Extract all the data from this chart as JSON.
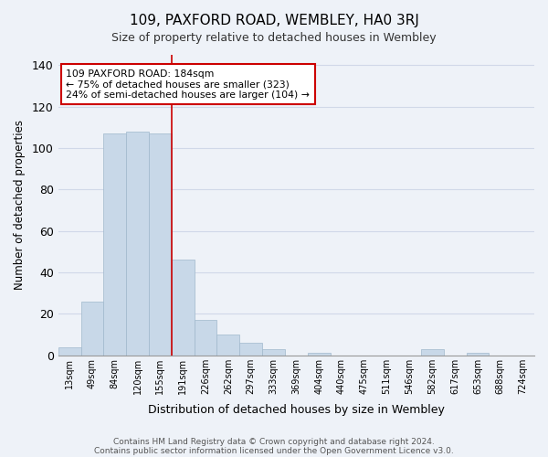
{
  "title": "109, PAXFORD ROAD, WEMBLEY, HA0 3RJ",
  "subtitle": "Size of property relative to detached houses in Wembley",
  "xlabel": "Distribution of detached houses by size in Wembley",
  "ylabel": "Number of detached properties",
  "bin_labels": [
    "13sqm",
    "49sqm",
    "84sqm",
    "120sqm",
    "155sqm",
    "191sqm",
    "226sqm",
    "262sqm",
    "297sqm",
    "333sqm",
    "369sqm",
    "404sqm",
    "440sqm",
    "475sqm",
    "511sqm",
    "546sqm",
    "582sqm",
    "617sqm",
    "653sqm",
    "688sqm",
    "724sqm"
  ],
  "bar_heights": [
    4,
    26,
    107,
    108,
    107,
    46,
    17,
    10,
    6,
    3,
    0,
    1,
    0,
    0,
    0,
    0,
    3,
    0,
    1,
    0,
    0
  ],
  "bar_color": "#c8d8e8",
  "bar_edge_color": "#a0b8cc",
  "bar_width": 1.0,
  "vline_x": 5,
  "vline_color": "#cc0000",
  "ylim": [
    0,
    145
  ],
  "yticks": [
    0,
    20,
    40,
    60,
    80,
    100,
    120,
    140
  ],
  "annotation_text": "109 PAXFORD ROAD: 184sqm\n← 75% of detached houses are smaller (323)\n24% of semi-detached houses are larger (104) →",
  "annotation_box_color": "#ffffff",
  "annotation_border_color": "#cc0000",
  "grid_color": "#d0d8e8",
  "bg_color": "#eef2f8",
  "footer_line1": "Contains HM Land Registry data © Crown copyright and database right 2024.",
  "footer_line2": "Contains public sector information licensed under the Open Government Licence v3.0."
}
